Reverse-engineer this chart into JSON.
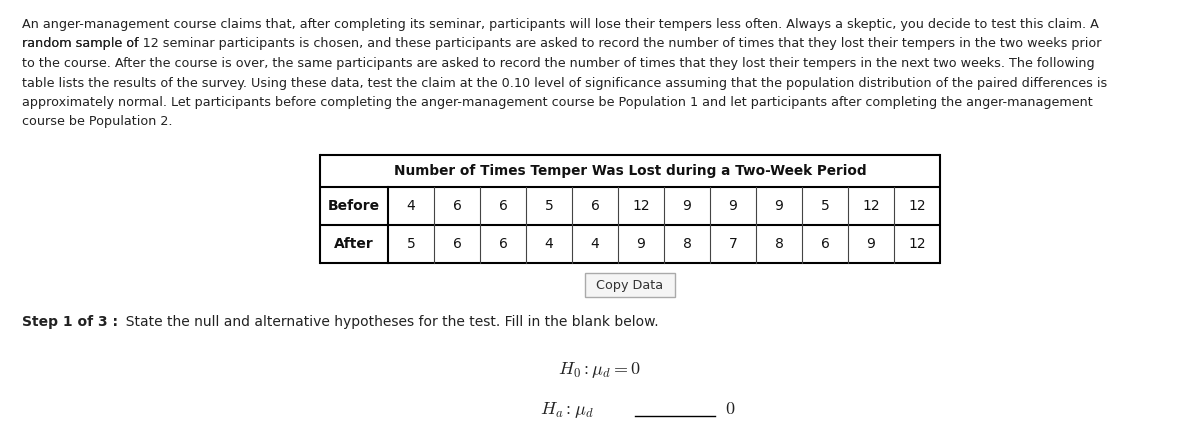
{
  "para_lines": [
    "An anger-management course claims that, after completing its seminar, participants will lose their tempers less often. Always a skeptic, you decide to test this claim. A",
    "random sample of {12} seminar participants is chosen, and these participants are asked to record the number of times that they lost their tempers in the two weeks prior",
    "to the course. After the course is over, the same participants are asked to record the number of times that they lost their tempers in the next two weeks. The following",
    "table lists the results of the survey. Using these data, test the claim at the {0.10} level of significance assuming that the population distribution of the paired differences is",
    "approximately normal. Let participants before completing the anger-management course be Population 1 and let participants after completing the anger-management",
    "course be Population 2."
  ],
  "table_title": "Number of Times Temper Was Lost during a Two-Week Period",
  "before_label": "Before",
  "after_label": "After",
  "before_data": [
    4,
    6,
    6,
    5,
    6,
    12,
    9,
    9,
    9,
    5,
    12,
    12
  ],
  "after_data": [
    5,
    6,
    6,
    4,
    4,
    9,
    8,
    7,
    8,
    6,
    9,
    12
  ],
  "copy_data_label": "Copy Data",
  "step_bold": "Step 1 of 3 :",
  "step_rest": "  State the null and alternative hypotheses for the test. Fill in the blank below.",
  "bg_color": "#ffffff",
  "text_color": "#222222",
  "font_size_body": 9.2,
  "font_size_table": 10.0,
  "font_size_math": 13.0
}
